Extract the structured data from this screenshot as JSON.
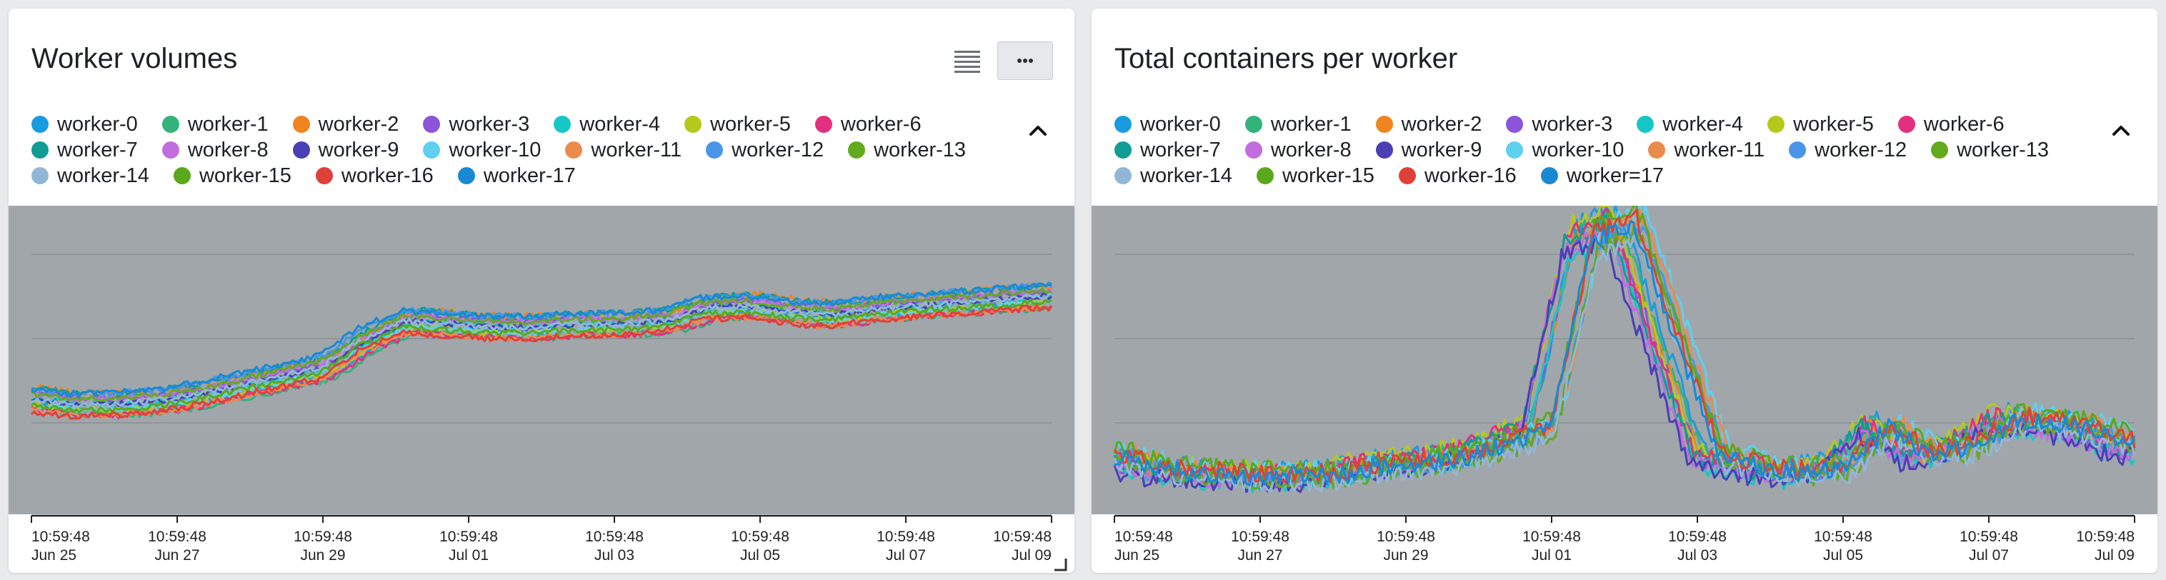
{
  "chart_data": [
    {
      "type": "line",
      "title": "Worker volumes",
      "xlabel": "",
      "ylabel": "",
      "grid": true,
      "x_ticks": [
        {
          "time": "10:59:48",
          "date": "Jun 25"
        },
        {
          "time": "10:59:48",
          "date": "Jun 27"
        },
        {
          "time": "10:59:48",
          "date": "Jun 29"
        },
        {
          "time": "10:59:48",
          "date": "Jul 01"
        },
        {
          "time": "10:59:48",
          "date": "Jul 03"
        },
        {
          "time": "10:59:48",
          "date": "Jul 05"
        },
        {
          "time": "10:59:48",
          "date": "Jul 07"
        },
        {
          "time": "10:59:48",
          "date": "Jul 09"
        }
      ],
      "series": [
        {
          "name": "worker-0",
          "color": "#1a9be0"
        },
        {
          "name": "worker-1",
          "color": "#34b27b"
        },
        {
          "name": "worker-2",
          "color": "#f0841f"
        },
        {
          "name": "worker-3",
          "color": "#8a55d8"
        },
        {
          "name": "worker-4",
          "color": "#17c7c7"
        },
        {
          "name": "worker-5",
          "color": "#b5c91d"
        },
        {
          "name": "worker-6",
          "color": "#e3307e"
        },
        {
          "name": "worker-7",
          "color": "#109d93"
        },
        {
          "name": "worker-8",
          "color": "#c06de0"
        },
        {
          "name": "worker-9",
          "color": "#4a3fb5"
        },
        {
          "name": "worker-10",
          "color": "#5fd0ef"
        },
        {
          "name": "worker-11",
          "color": "#eb8a4d"
        },
        {
          "name": "worker-12",
          "color": "#4a95e8"
        },
        {
          "name": "worker-13",
          "color": "#62aa1e"
        },
        {
          "name": "worker-14",
          "color": "#92b7d6"
        },
        {
          "name": "worker-15",
          "color": "#5aa81c"
        },
        {
          "name": "worker-16",
          "color": "#e0403a"
        },
        {
          "name": "worker-17",
          "color": "#1989d4"
        }
      ],
      "profile": [
        0.38,
        0.36,
        0.36,
        0.37,
        0.39,
        0.42,
        0.45,
        0.48,
        0.57,
        0.63,
        0.62,
        0.61,
        0.61,
        0.62,
        0.62,
        0.63,
        0.67,
        0.68,
        0.66,
        0.65,
        0.67,
        0.68,
        0.69,
        0.7,
        0.71
      ]
    },
    {
      "type": "line",
      "title": "Total containers per worker",
      "xlabel": "",
      "ylabel": "",
      "grid": true,
      "x_ticks": [
        {
          "time": "10:59:48",
          "date": "Jun 25"
        },
        {
          "time": "10:59:48",
          "date": "Jun 27"
        },
        {
          "time": "10:59:48",
          "date": "Jun 29"
        },
        {
          "time": "10:59:48",
          "date": "Jul 01"
        },
        {
          "time": "10:59:48",
          "date": "Jul 03"
        },
        {
          "time": "10:59:48",
          "date": "Jul 05"
        },
        {
          "time": "10:59:48",
          "date": "Jul 07"
        },
        {
          "time": "10:59:48",
          "date": "Jul 09"
        }
      ],
      "series": [
        {
          "name": "worker-0",
          "color": "#1a9be0"
        },
        {
          "name": "worker-1",
          "color": "#34b27b"
        },
        {
          "name": "worker-2",
          "color": "#f0841f"
        },
        {
          "name": "worker-3",
          "color": "#8a55d8"
        },
        {
          "name": "worker-4",
          "color": "#17c7c7"
        },
        {
          "name": "worker-5",
          "color": "#b5c91d"
        },
        {
          "name": "worker-6",
          "color": "#e3307e"
        },
        {
          "name": "worker-7",
          "color": "#109d93"
        },
        {
          "name": "worker-8",
          "color": "#c06de0"
        },
        {
          "name": "worker-9",
          "color": "#4a3fb5"
        },
        {
          "name": "worker-10",
          "color": "#5fd0ef"
        },
        {
          "name": "worker-11",
          "color": "#eb8a4d"
        },
        {
          "name": "worker-12",
          "color": "#4a95e8"
        },
        {
          "name": "worker-13",
          "color": "#62aa1e"
        },
        {
          "name": "worker-14",
          "color": "#92b7d6"
        },
        {
          "name": "worker-15",
          "color": "#5aa81c"
        },
        {
          "name": "worker-16",
          "color": "#e0403a"
        },
        {
          "name": "worker=17",
          "color": "#1989d4"
        }
      ],
      "profile": [
        0.18,
        0.14,
        0.13,
        0.12,
        0.12,
        0.12,
        0.15,
        0.16,
        0.18,
        0.22,
        0.28,
        0.88,
        0.93,
        0.55,
        0.18,
        0.15,
        0.13,
        0.15,
        0.28,
        0.18,
        0.22,
        0.3,
        0.29,
        0.26,
        0.21
      ]
    }
  ]
}
